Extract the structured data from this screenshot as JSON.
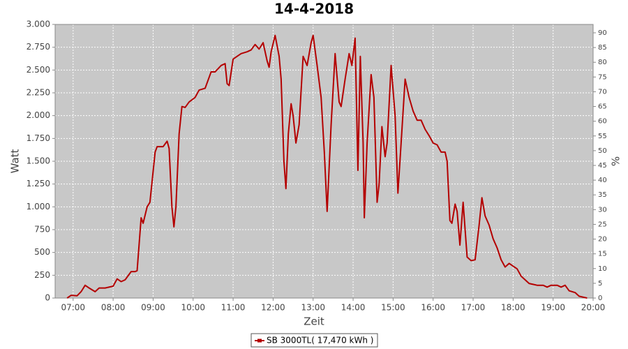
{
  "chart_data": {
    "type": "line",
    "title": "14-4-2018",
    "xlabel": "Zeit",
    "ylabel": "Watt",
    "y2label": "%",
    "grid": true,
    "legend": "bottom",
    "xlim": [
      6.55,
      20
    ],
    "xticks": [
      {
        "value": 7,
        "label": "07:00"
      },
      {
        "value": 8,
        "label": "08:00"
      },
      {
        "value": 9,
        "label": "09:00"
      },
      {
        "value": 10,
        "label": "10:00"
      },
      {
        "value": 11,
        "label": "11:00"
      },
      {
        "value": 12,
        "label": "12:00"
      },
      {
        "value": 13,
        "label": "13:00"
      },
      {
        "value": 14,
        "label": "14:00"
      },
      {
        "value": 15,
        "label": "15:00"
      },
      {
        "value": 16,
        "label": "16:00"
      },
      {
        "value": 17,
        "label": "17:00"
      },
      {
        "value": 18,
        "label": "18:00"
      },
      {
        "value": 19,
        "label": "19:00"
      },
      {
        "value": 20,
        "label": "20:00"
      }
    ],
    "ylim": [
      0,
      3000
    ],
    "yticks": [
      0,
      250,
      500,
      750,
      {
        "value": 1000,
        "label": "1.000"
      },
      {
        "value": 1250,
        "label": "1.250"
      },
      {
        "value": 1500,
        "label": "1.500"
      },
      {
        "value": 1750,
        "label": "1.750"
      },
      {
        "value": 2000,
        "label": "2.000"
      },
      {
        "value": 2250,
        "label": "2.250"
      },
      {
        "value": 2500,
        "label": "2.500"
      },
      {
        "value": 2750,
        "label": "2.750"
      },
      {
        "value": 3000,
        "label": "3.000"
      }
    ],
    "y2lim": [
      0,
      92.84
    ],
    "y2ticks": [
      0,
      5,
      10,
      15,
      20,
      25,
      30,
      35,
      40,
      45,
      50,
      55,
      60,
      65,
      70,
      75,
      80,
      85,
      90
    ],
    "x": [
      6.85,
      6.95,
      7.1,
      7.2,
      7.3,
      7.4,
      7.55,
      7.65,
      7.8,
      8.0,
      8.1,
      8.2,
      8.3,
      8.45,
      8.55,
      8.6,
      8.7,
      8.75,
      8.85,
      8.92,
      9.05,
      9.1,
      9.25,
      9.35,
      9.4,
      9.47,
      9.52,
      9.57,
      9.65,
      9.72,
      9.8,
      9.9,
      10.05,
      10.15,
      10.3,
      10.45,
      10.55,
      10.7,
      10.8,
      10.85,
      10.9,
      11.0,
      11.1,
      11.2,
      11.35,
      11.45,
      11.55,
      11.65,
      11.75,
      11.85,
      11.9,
      11.95,
      12.05,
      12.15,
      12.2,
      12.27,
      12.32,
      12.38,
      12.45,
      12.5,
      12.57,
      12.65,
      12.75,
      12.85,
      12.95,
      13.0,
      13.1,
      13.2,
      13.28,
      13.35,
      13.45,
      13.55,
      13.65,
      13.7,
      13.8,
      13.9,
      13.97,
      14.05,
      14.12,
      14.18,
      14.25,
      14.28,
      14.35,
      14.45,
      14.52,
      14.6,
      14.65,
      14.72,
      14.8,
      14.85,
      14.95,
      15.05,
      15.12,
      15.2,
      15.3,
      15.4,
      15.5,
      15.6,
      15.7,
      15.8,
      15.9,
      16.0,
      16.1,
      16.2,
      16.3,
      16.35,
      16.42,
      16.47,
      16.55,
      16.6,
      16.67,
      16.75,
      16.85,
      16.95,
      17.05,
      17.15,
      17.22,
      17.3,
      17.4,
      17.5,
      17.6,
      17.7,
      17.8,
      17.9,
      18.0,
      18.1,
      18.2,
      18.3,
      18.4,
      18.5,
      18.6,
      18.75,
      18.85,
      18.95,
      19.1,
      19.2,
      19.3,
      19.4,
      19.55,
      19.65,
      19.75,
      19.85
    ],
    "series": [
      {
        "name": "SB 3000TL( 17,470 kWh )",
        "color": "#b40000",
        "values": [
          0,
          30,
          25,
          70,
          140,
          110,
          70,
          110,
          110,
          130,
          210,
          180,
          200,
          290,
          290,
          300,
          880,
          820,
          1000,
          1050,
          1600,
          1660,
          1660,
          1720,
          1640,
          1000,
          780,
          1000,
          1800,
          2100,
          2090,
          2150,
          2200,
          2280,
          2300,
          2480,
          2480,
          2550,
          2570,
          2350,
          2330,
          2620,
          2650,
          2680,
          2700,
          2720,
          2780,
          2730,
          2800,
          2600,
          2530,
          2700,
          2880,
          2650,
          2400,
          1500,
          1200,
          1800,
          2130,
          2000,
          1700,
          1900,
          2650,
          2550,
          2800,
          2880,
          2550,
          2200,
          1600,
          950,
          1900,
          2680,
          2150,
          2100,
          2400,
          2680,
          2550,
          2850,
          1400,
          2650,
          1700,
          880,
          1700,
          2450,
          2200,
          1050,
          1250,
          1880,
          1550,
          1700,
          2550,
          2000,
          1150,
          1700,
          2400,
          2200,
          2050,
          1950,
          1950,
          1850,
          1780,
          1700,
          1680,
          1600,
          1600,
          1500,
          850,
          820,
          1030,
          950,
          580,
          1050,
          450,
          410,
          420,
          800,
          1100,
          900,
          800,
          650,
          550,
          420,
          340,
          380,
          350,
          320,
          240,
          200,
          160,
          150,
          140,
          140,
          120,
          140,
          140,
          120,
          140,
          80,
          60,
          20,
          10,
          0
        ]
      }
    ]
  }
}
